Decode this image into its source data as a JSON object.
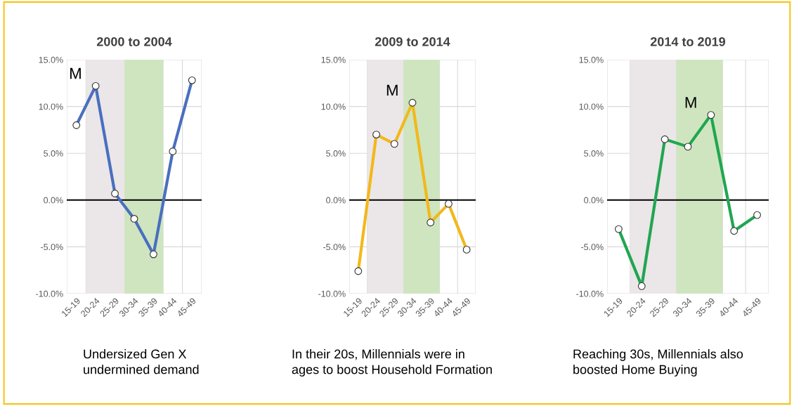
{
  "chart_data": [
    {
      "type": "line",
      "title": "2000 to 2004",
      "categories": [
        "15-19",
        "20-24",
        "25-29",
        "30-34",
        "35-39",
        "40-44",
        "45-49"
      ],
      "series": [
        {
          "color": "#4a6fbf",
          "values": [
            8.0,
            12.2,
            0.7,
            -2.0,
            -5.8,
            5.2,
            12.8
          ]
        }
      ],
      "ylim": [
        -10,
        15
      ],
      "yticks": [
        {
          "value": -10,
          "label": "-10.0%"
        },
        {
          "value": -5,
          "label": "-5.0%"
        },
        {
          "value": 0,
          "label": "0.0%"
        },
        {
          "value": 5,
          "label": "5.0%"
        },
        {
          "value": 10,
          "label": "10.0%"
        },
        {
          "value": 15,
          "label": "15.0%"
        }
      ],
      "grid": true,
      "marker": "circle",
      "ref_lines": [
        {
          "axis": "y",
          "value": 0,
          "color": "#000000"
        }
      ],
      "bands": [
        {
          "axis": "x",
          "from": "20-24",
          "to": "25-29",
          "color": "#ebe6e8"
        },
        {
          "axis": "x",
          "from": "30-34",
          "to": "35-39",
          "color": "#cfe5bf"
        }
      ],
      "annotations": [
        {
          "text": "M",
          "x": "20-24",
          "y": 12.2
        },
        "Undersized Gen X\nundermined demand"
      ]
    },
    {
      "type": "line",
      "title": "2009 to 2014",
      "categories": [
        "15-19",
        "20-24",
        "25-29",
        "30-34",
        "35-39",
        "40-44",
        "45-49"
      ],
      "series": [
        {
          "color": "#f2b81c",
          "values": [
            -7.6,
            7.0,
            6.0,
            10.4,
            -2.4,
            -0.4,
            -5.3
          ]
        }
      ],
      "ylim": [
        -10,
        15
      ],
      "yticks": [
        {
          "value": -10,
          "label": "-10.0%"
        },
        {
          "value": -5,
          "label": "-5.0%"
        },
        {
          "value": 0,
          "label": "0.0%"
        },
        {
          "value": 5,
          "label": "5.0%"
        },
        {
          "value": 10,
          "label": "10.0%"
        },
        {
          "value": 15,
          "label": "15.0%"
        }
      ],
      "grid": true,
      "marker": "circle",
      "ref_lines": [
        {
          "axis": "y",
          "value": 0,
          "color": "#000000"
        }
      ],
      "bands": [
        {
          "axis": "x",
          "from": "20-24",
          "to": "25-29",
          "color": "#ebe6e8"
        },
        {
          "axis": "x",
          "from": "30-34",
          "to": "35-39",
          "color": "#cfe5bf"
        }
      ],
      "annotations": [
        {
          "text": "M",
          "x": "30-34",
          "y": 10.4
        },
        "In their 20s, Millennials were in\nages to boost Household Formation"
      ]
    },
    {
      "type": "line",
      "title": "2014 to 2019",
      "categories": [
        "15-19",
        "20-24",
        "25-29",
        "30-34",
        "35-39",
        "40-44",
        "45-49"
      ],
      "series": [
        {
          "color": "#20a650",
          "values": [
            -3.1,
            -9.2,
            6.5,
            5.7,
            9.1,
            -3.3,
            -1.6
          ]
        }
      ],
      "ylim": [
        -10,
        15
      ],
      "yticks": [
        {
          "value": -10,
          "label": "-10.0%"
        },
        {
          "value": -5,
          "label": "-5.0%"
        },
        {
          "value": 0,
          "label": "0.0%"
        },
        {
          "value": 5,
          "label": "5.0%"
        },
        {
          "value": 10,
          "label": "10.0%"
        },
        {
          "value": 15,
          "label": "15.0%"
        }
      ],
      "grid": true,
      "marker": "circle",
      "ref_lines": [
        {
          "axis": "y",
          "value": 0,
          "color": "#000000"
        }
      ],
      "bands": [
        {
          "axis": "x",
          "from": "20-24",
          "to": "25-29",
          "color": "#ebe6e8"
        },
        {
          "axis": "x",
          "from": "30-34",
          "to": "35-39",
          "color": "#cfe5bf"
        }
      ],
      "annotations": [
        {
          "text": "M",
          "x": "35-39",
          "y": 9.1
        },
        "Reaching 30s, Millennials also\nboosted Home Buying"
      ]
    }
  ]
}
